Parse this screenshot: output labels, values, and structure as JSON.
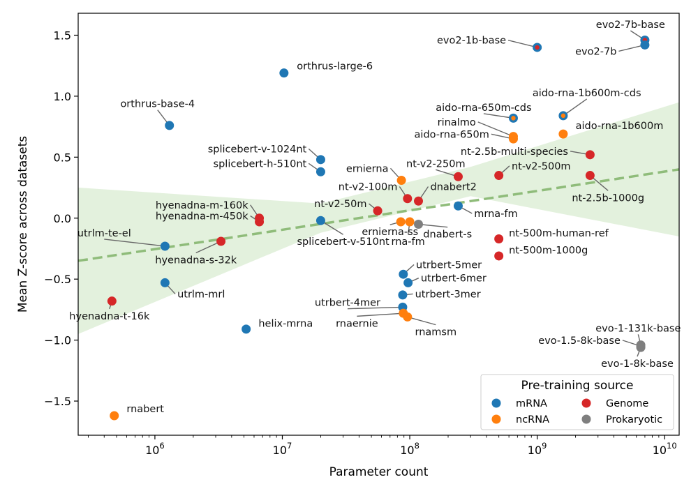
{
  "chart_data": {
    "type": "scatter",
    "xlabel": "Parameter count",
    "ylabel": "Mean Z-score across datasets",
    "x_scale": "log",
    "xlim": [
      250000,
      13000000000
    ],
    "ylim": [
      -1.78,
      1.68
    ],
    "x_ticks": [
      {
        "value": 1000000,
        "base": "10",
        "exp": "6"
      },
      {
        "value": 10000000,
        "base": "10",
        "exp": "7"
      },
      {
        "value": 100000000,
        "base": "10",
        "exp": "8"
      },
      {
        "value": 1000000000,
        "base": "10",
        "exp": "9"
      },
      {
        "value": 10000000000,
        "base": "10",
        "exp": "10"
      }
    ],
    "y_ticks": [
      {
        "value": 1.5,
        "label": "1.5"
      },
      {
        "value": 1.0,
        "label": "1.0"
      },
      {
        "value": 0.5,
        "label": "0.5"
      },
      {
        "value": 0.0,
        "label": "0.0"
      },
      {
        "value": -0.5,
        "label": "−0.5"
      },
      {
        "value": -1.0,
        "label": "−1.0"
      },
      {
        "value": -1.5,
        "label": "−1.5"
      }
    ],
    "colors": {
      "mRNA": "#1f77b4",
      "ncRNA": "#ff7f0e",
      "Genome": "#d62728",
      "Prokaryotic": "#7f7f7f",
      "trend": "#8fbc7a",
      "band": "#d9ecd2"
    },
    "trend": {
      "x0": 250000,
      "y0": -0.35,
      "x1": 13000000000,
      "y1": 0.4
    },
    "band_upper": [
      [
        250000,
        0.25
      ],
      [
        20000000,
        0.12
      ],
      [
        300000000,
        0.42
      ],
      [
        13000000000,
        0.95
      ]
    ],
    "band_lower": [
      [
        250000,
        -0.95
      ],
      [
        20000000,
        -0.12
      ],
      [
        300000000,
        0.18
      ],
      [
        13000000000,
        -0.15
      ]
    ],
    "legend": {
      "title": "Pre-training source",
      "entries": [
        {
          "label": "mRNA",
          "color": "#1f77b4"
        },
        {
          "label": "Genome",
          "color": "#d62728"
        },
        {
          "label": "ncRNA",
          "color": "#ff7f0e"
        },
        {
          "label": "Prokaryotic",
          "color": "#7f7f7f"
        }
      ]
    },
    "points": [
      {
        "name": "evo2-7b-base",
        "x": 7000000000,
        "y": 1.46,
        "source": "mRNA",
        "inner": "Genome",
        "lx": 5400000000,
        "ly": 1.56,
        "anchor": "middle",
        "leader": true
      },
      {
        "name": "evo2-7b",
        "x": 7000000000,
        "y": 1.42,
        "source": "mRNA",
        "lx": 4200000000,
        "ly": 1.34,
        "anchor": "end",
        "leader": true
      },
      {
        "name": "evo2-1b-base",
        "x": 1000000000,
        "y": 1.4,
        "source": "mRNA",
        "inner": "Genome",
        "lx": 570000000,
        "ly": 1.43,
        "anchor": "end",
        "leader": true
      },
      {
        "name": "orthrus-large-6",
        "x": 10300000,
        "y": 1.19,
        "source": "mRNA",
        "lx": 13000000,
        "ly": 1.22,
        "anchor": "start",
        "leader": false
      },
      {
        "name": "orthrus-base-4",
        "x": 1300000,
        "y": 0.76,
        "source": "mRNA",
        "lx": 1050000,
        "ly": 0.91,
        "anchor": "middle",
        "leader": true
      },
      {
        "name": "aido-rna-1b600m-cds",
        "x": 1600000000,
        "y": 0.84,
        "source": "mRNA",
        "inner": "ncRNA",
        "lx": 2450000000,
        "ly": 1.0,
        "anchor": "middle",
        "leader": true
      },
      {
        "name": "aido-rna-650m-cds",
        "x": 650000000,
        "y": 0.82,
        "source": "mRNA",
        "inner": "ncRNA",
        "lx": 380000000,
        "ly": 0.88,
        "anchor": "middle",
        "leader": true
      },
      {
        "name": "rinalmo",
        "x": 650000000,
        "y": 0.67,
        "source": "ncRNA",
        "lx": 330000000,
        "ly": 0.76,
        "anchor": "end",
        "leader": true
      },
      {
        "name": "aido-rna-650m",
        "x": 650000000,
        "y": 0.65,
        "source": "ncRNA",
        "lx": 420000000,
        "ly": 0.66,
        "anchor": "end",
        "leader": true
      },
      {
        "name": "aido-rna-1b600m",
        "x": 1600000000,
        "y": 0.69,
        "source": "ncRNA",
        "lx": 2000000000,
        "ly": 0.73,
        "anchor": "start",
        "leader": false
      },
      {
        "name": "nt-2.5b-multi-species",
        "x": 2600000000,
        "y": 0.52,
        "source": "Genome",
        "lx": 1750000000,
        "ly": 0.52,
        "anchor": "end",
        "leader": true
      },
      {
        "name": "splicebert-v-1024nt",
        "x": 20000000,
        "y": 0.48,
        "source": "mRNA",
        "lx": 15500000,
        "ly": 0.54,
        "anchor": "end",
        "leader": true
      },
      {
        "name": "splicebert-h-510nt",
        "x": 20000000,
        "y": 0.38,
        "source": "mRNA",
        "lx": 15500000,
        "ly": 0.42,
        "anchor": "end",
        "leader": true
      },
      {
        "name": "ernierna",
        "x": 86000000,
        "y": 0.31,
        "source": "ncRNA",
        "lx": 68000000,
        "ly": 0.38,
        "anchor": "end",
        "leader": true
      },
      {
        "name": "nt-v2-250m",
        "x": 240000000,
        "y": 0.34,
        "source": "Genome",
        "lx": 160000000,
        "ly": 0.42,
        "anchor": "middle",
        "leader": true
      },
      {
        "name": "nt-v2-500m",
        "x": 500000000,
        "y": 0.35,
        "source": "Genome",
        "lx": 630000000,
        "ly": 0.4,
        "anchor": "start",
        "leader": true
      },
      {
        "name": "nt-2.5b-1000g",
        "x": 2600000000,
        "y": 0.35,
        "source": "Genome",
        "lx": 3600000000,
        "ly": 0.14,
        "anchor": "middle",
        "leader": true
      },
      {
        "name": "nt-v2-100m",
        "x": 96000000,
        "y": 0.16,
        "source": "Genome",
        "lx": 80000000,
        "ly": 0.23,
        "anchor": "end",
        "leader": true
      },
      {
        "name": "dnabert2",
        "x": 117000000,
        "y": 0.14,
        "source": "Genome",
        "lx": 145000000,
        "ly": 0.23,
        "anchor": "start",
        "leader": true
      },
      {
        "name": "mrna-fm",
        "x": 240000000,
        "y": 0.1,
        "source": "mRNA",
        "lx": 320000000,
        "ly": 0.01,
        "anchor": "start",
        "leader": true
      },
      {
        "name": "nt-v2-50m",
        "x": 56000000,
        "y": 0.06,
        "source": "Genome",
        "lx": 46000000,
        "ly": 0.09,
        "anchor": "end",
        "leader": true
      },
      {
        "name": "hyenadna-m-160k",
        "x": 6600000,
        "y": 0.0,
        "source": "Genome",
        "lx": 5400000,
        "ly": 0.08,
        "anchor": "end",
        "leader": true
      },
      {
        "name": "hyenadna-m-450k",
        "x": 6600000,
        "y": -0.03,
        "source": "Genome",
        "lx": 5400000,
        "ly": -0.01,
        "anchor": "end",
        "leader": true
      },
      {
        "name": "splicebert-v-510nt",
        "x": 20000000,
        "y": -0.02,
        "source": "mRNA",
        "lx": 30000000,
        "ly": -0.22,
        "anchor": "middle",
        "leader": true
      },
      {
        "name": "ernierna-ss",
        "x": 85000000,
        "y": -0.03,
        "source": "ncRNA",
        "lx": 70000000,
        "ly": -0.14,
        "anchor": "middle",
        "leader": true
      },
      {
        "name": "rna-fm",
        "x": 100000000,
        "y": -0.03,
        "source": "ncRNA",
        "lx": 97000000,
        "ly": -0.22,
        "anchor": "middle",
        "leader": true
      },
      {
        "name": "dnabert-s",
        "x": 117000000,
        "y": -0.05,
        "source": "Prokaryotic",
        "lx": 198000000,
        "ly": -0.16,
        "anchor": "middle",
        "leader": true
      },
      {
        "name": "nt-500m-human-ref",
        "x": 500000000,
        "y": -0.17,
        "source": "Genome",
        "lx": 600000000,
        "ly": -0.15,
        "anchor": "start",
        "leader": false
      },
      {
        "name": "nt-500m-1000g",
        "x": 500000000,
        "y": -0.31,
        "source": "Genome",
        "lx": 600000000,
        "ly": -0.29,
        "anchor": "start",
        "leader": false
      },
      {
        "name": "utrlm-te-el",
        "x": 1200000,
        "y": -0.23,
        "source": "mRNA",
        "lx": 400000,
        "ly": -0.15,
        "anchor": "middle",
        "leader": true
      },
      {
        "name": "hyenadna-s-32k",
        "x": 3300000,
        "y": -0.19,
        "source": "Genome",
        "lx": 2100000,
        "ly": -0.37,
        "anchor": "middle",
        "leader": true
      },
      {
        "name": "utrbert-5mer",
        "x": 89000000,
        "y": -0.46,
        "source": "mRNA",
        "lx": 112000000,
        "ly": -0.41,
        "anchor": "start",
        "leader": true
      },
      {
        "name": "utrbert-6mer",
        "x": 97000000,
        "y": -0.53,
        "source": "mRNA",
        "lx": 122000000,
        "ly": -0.52,
        "anchor": "start",
        "leader": true
      },
      {
        "name": "utrbert-3mer",
        "x": 88000000,
        "y": -0.63,
        "source": "mRNA",
        "lx": 110000000,
        "ly": -0.65,
        "anchor": "start",
        "leader": true
      },
      {
        "name": "utrbert-4mer",
        "x": 88000000,
        "y": -0.73,
        "source": "mRNA",
        "lx": 32500000,
        "ly": -0.72,
        "anchor": "middle",
        "leader": true
      },
      {
        "name": "rnaernie",
        "x": 89000000,
        "y": -0.78,
        "source": "ncRNA",
        "lx": 38500000,
        "ly": -0.89,
        "anchor": "middle",
        "leader": true
      },
      {
        "name": "rnamsm",
        "x": 96000000,
        "y": -0.81,
        "source": "ncRNA",
        "lx": 160000000,
        "ly": -0.96,
        "anchor": "middle",
        "leader": true
      },
      {
        "name": "utrlm-mrl",
        "x": 1200000,
        "y": -0.53,
        "source": "mRNA",
        "lx": 1500000,
        "ly": -0.65,
        "anchor": "start",
        "leader": true
      },
      {
        "name": "hyenadna-t-16k",
        "x": 460000,
        "y": -0.68,
        "source": "Genome",
        "lx": 440000,
        "ly": -0.83,
        "anchor": "middle",
        "leader": true
      },
      {
        "name": "helix-mrna",
        "x": 5200000,
        "y": -0.91,
        "source": "mRNA",
        "lx": 6500000,
        "ly": -0.89,
        "anchor": "start",
        "leader": false
      },
      {
        "name": "evo-1-131k-base",
        "x": 6500000000,
        "y": -1.04,
        "source": "Prokaryotic",
        "lx": 6200000000,
        "ly": -0.93,
        "anchor": "middle",
        "leader": true
      },
      {
        "name": "evo-1.5-8k-base",
        "x": 6500000000,
        "y": -1.05,
        "source": "Prokaryotic",
        "lx": 4500000000,
        "ly": -1.03,
        "anchor": "end",
        "leader": true
      },
      {
        "name": "evo-1-8k-base",
        "x": 6500000000,
        "y": -1.06,
        "source": "Prokaryotic",
        "lx": 6100000000,
        "ly": -1.22,
        "anchor": "middle",
        "leader": true
      },
      {
        "name": "rnabert",
        "x": 480000,
        "y": -1.62,
        "source": "ncRNA",
        "lx": 600000,
        "ly": -1.59,
        "anchor": "start",
        "leader": false
      }
    ]
  }
}
